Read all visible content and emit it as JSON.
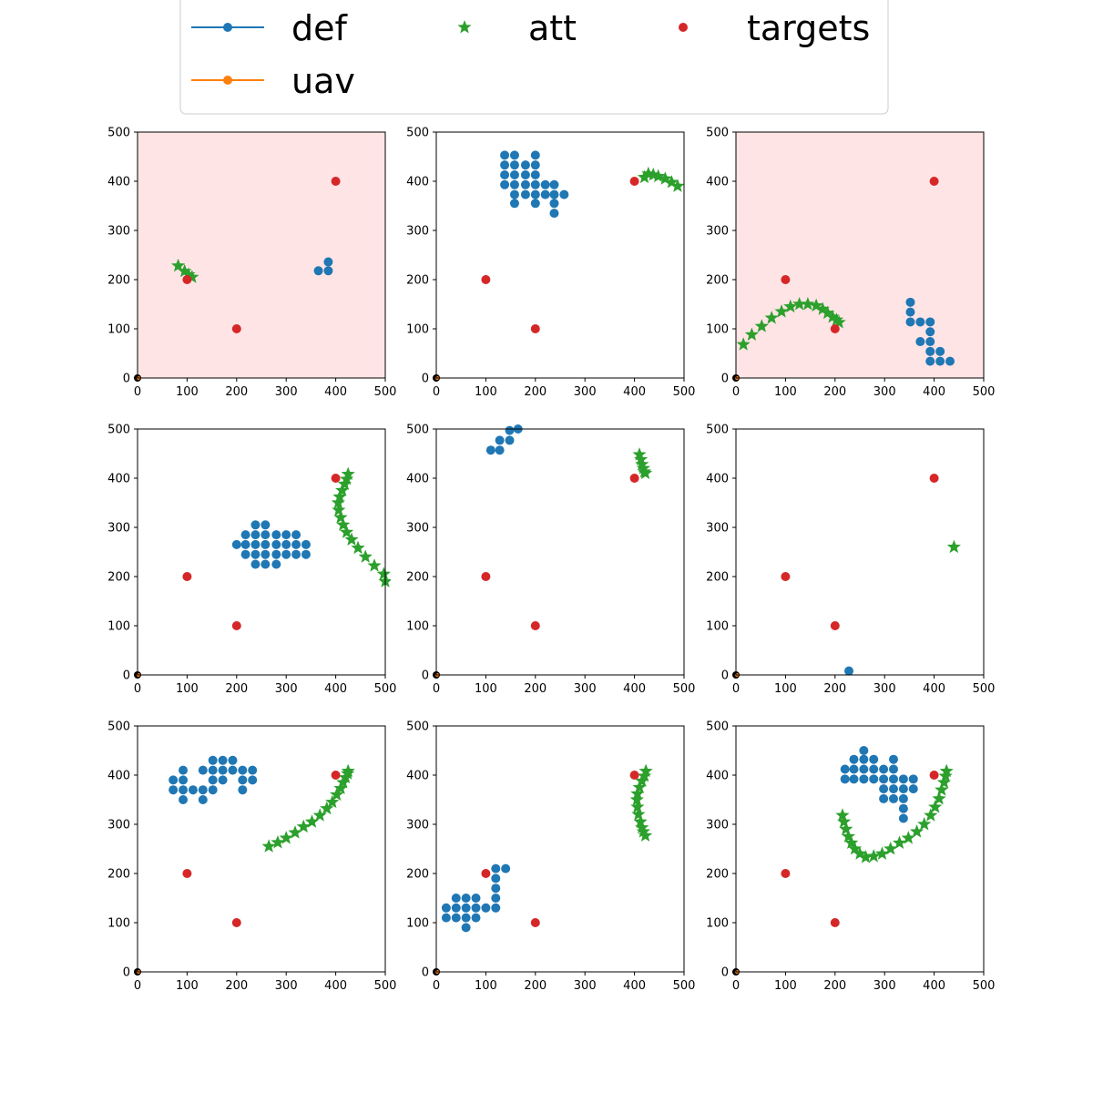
{
  "colors": {
    "def": "#1f77b4",
    "uav": "#ff7f0e",
    "att": "#2ca02c",
    "targets": "#d62728",
    "origin": "#000000",
    "highlight_bg": "#ffe4e6"
  },
  "legend": {
    "placement": "top-center",
    "entries": [
      {
        "key": "def",
        "label": "def",
        "marker": "line-dot"
      },
      {
        "key": "att",
        "label": "att",
        "marker": "star"
      },
      {
        "key": "targets",
        "label": "targets",
        "marker": "dot"
      },
      {
        "key": "uav",
        "label": "uav",
        "marker": "line-dot"
      }
    ]
  },
  "chart_data": [
    {
      "type": "scatter",
      "highlighted": true,
      "xlim": [
        0,
        500
      ],
      "ylim": [
        0,
        500
      ],
      "xticks": [
        "0",
        "100",
        "200",
        "300",
        "400",
        "500"
      ],
      "yticks": [
        "0",
        "100",
        "200",
        "300",
        "400",
        "500"
      ],
      "targets": [
        [
          100,
          200
        ],
        [
          200,
          100
        ],
        [
          400,
          400
        ]
      ],
      "def": [
        [
          365,
          218
        ],
        [
          385,
          218
        ],
        [
          385,
          236
        ]
      ],
      "att": [
        [
          82,
          228
        ],
        [
          95,
          217
        ],
        [
          103,
          210
        ],
        [
          110,
          205
        ]
      ],
      "origin": [
        [
          0,
          0
        ]
      ]
    },
    {
      "type": "scatter",
      "highlighted": false,
      "xlim": [
        0,
        500
      ],
      "ylim": [
        0,
        500
      ],
      "xticks": [
        "0",
        "100",
        "200",
        "300",
        "400",
        "500"
      ],
      "yticks": [
        "0",
        "100",
        "200",
        "300",
        "400",
        "500"
      ],
      "targets": [
        [
          100,
          200
        ],
        [
          200,
          100
        ],
        [
          400,
          400
        ]
      ],
      "def": [
        [
          138,
          453
        ],
        [
          158,
          453
        ],
        [
          200,
          453
        ],
        [
          138,
          433
        ],
        [
          158,
          433
        ],
        [
          180,
          433
        ],
        [
          200,
          433
        ],
        [
          138,
          413
        ],
        [
          158,
          413
        ],
        [
          180,
          413
        ],
        [
          200,
          413
        ],
        [
          138,
          393
        ],
        [
          158,
          393
        ],
        [
          180,
          393
        ],
        [
          200,
          393
        ],
        [
          220,
          393
        ],
        [
          238,
          393
        ],
        [
          158,
          373
        ],
        [
          180,
          373
        ],
        [
          200,
          373
        ],
        [
          220,
          373
        ],
        [
          238,
          373
        ],
        [
          258,
          373
        ],
        [
          158,
          355
        ],
        [
          200,
          355
        ],
        [
          238,
          355
        ],
        [
          238,
          335
        ]
      ],
      "att": [
        [
          420,
          408
        ],
        [
          428,
          415
        ],
        [
          438,
          413
        ],
        [
          448,
          410
        ],
        [
          462,
          405
        ],
        [
          475,
          398
        ],
        [
          487,
          390
        ]
      ],
      "origin": [
        [
          0,
          0
        ]
      ]
    },
    {
      "type": "scatter",
      "highlighted": true,
      "xlim": [
        0,
        500
      ],
      "ylim": [
        0,
        500
      ],
      "xticks": [
        "0",
        "100",
        "200",
        "300",
        "400",
        "500"
      ],
      "yticks": [
        "0",
        "100",
        "200",
        "300",
        "400",
        "500"
      ],
      "targets": [
        [
          100,
          200
        ],
        [
          200,
          100
        ],
        [
          400,
          400
        ]
      ],
      "def": [
        [
          352,
          154
        ],
        [
          352,
          134
        ],
        [
          352,
          114
        ],
        [
          372,
          114
        ],
        [
          392,
          114
        ],
        [
          372,
          74
        ],
        [
          392,
          94
        ],
        [
          392,
          74
        ],
        [
          392,
          54
        ],
        [
          412,
          54
        ],
        [
          392,
          34
        ],
        [
          412,
          34
        ],
        [
          432,
          34
        ]
      ],
      "att": [
        [
          15,
          68
        ],
        [
          32,
          88
        ],
        [
          52,
          105
        ],
        [
          72,
          122
        ],
        [
          92,
          135
        ],
        [
          110,
          145
        ],
        [
          128,
          150
        ],
        [
          145,
          150
        ],
        [
          162,
          147
        ],
        [
          175,
          140
        ],
        [
          185,
          132
        ],
        [
          195,
          124
        ],
        [
          203,
          118
        ],
        [
          208,
          113
        ]
      ],
      "origin": [
        [
          0,
          0
        ]
      ]
    },
    {
      "type": "scatter",
      "highlighted": false,
      "xlim": [
        0,
        500
      ],
      "ylim": [
        0,
        500
      ],
      "xticks": [
        "0",
        "100",
        "200",
        "300",
        "400",
        "500"
      ],
      "yticks": [
        "0",
        "100",
        "200",
        "300",
        "400",
        "500"
      ],
      "targets": [
        [
          100,
          200
        ],
        [
          200,
          100
        ],
        [
          400,
          400
        ]
      ],
      "def": [
        [
          238,
          305
        ],
        [
          258,
          305
        ],
        [
          218,
          285
        ],
        [
          238,
          285
        ],
        [
          258,
          285
        ],
        [
          280,
          285
        ],
        [
          300,
          285
        ],
        [
          320,
          285
        ],
        [
          200,
          265
        ],
        [
          218,
          265
        ],
        [
          238,
          265
        ],
        [
          258,
          265
        ],
        [
          280,
          265
        ],
        [
          300,
          265
        ],
        [
          320,
          265
        ],
        [
          340,
          265
        ],
        [
          218,
          245
        ],
        [
          238,
          245
        ],
        [
          258,
          245
        ],
        [
          280,
          245
        ],
        [
          300,
          245
        ],
        [
          320,
          245
        ],
        [
          340,
          245
        ],
        [
          238,
          225
        ],
        [
          258,
          225
        ],
        [
          280,
          225
        ]
      ],
      "att": [
        [
          425,
          408
        ],
        [
          422,
          398
        ],
        [
          418,
          388
        ],
        [
          413,
          375
        ],
        [
          408,
          362
        ],
        [
          405,
          350
        ],
        [
          406,
          335
        ],
        [
          410,
          320
        ],
        [
          415,
          305
        ],
        [
          422,
          290
        ],
        [
          432,
          275
        ],
        [
          445,
          258
        ],
        [
          460,
          240
        ],
        [
          478,
          222
        ],
        [
          497,
          205
        ],
        [
          500,
          190
        ]
      ],
      "origin": [
        [
          0,
          0
        ]
      ]
    },
    {
      "type": "scatter",
      "highlighted": false,
      "xlim": [
        0,
        500
      ],
      "ylim": [
        0,
        500
      ],
      "xticks": [
        "0",
        "100",
        "200",
        "300",
        "400",
        "500"
      ],
      "yticks": [
        "0",
        "100",
        "200",
        "300",
        "400",
        "500"
      ],
      "targets": [
        [
          100,
          200
        ],
        [
          200,
          100
        ],
        [
          400,
          400
        ]
      ],
      "def": [
        [
          110,
          457
        ],
        [
          128,
          457
        ],
        [
          128,
          477
        ],
        [
          148,
          477
        ],
        [
          148,
          497
        ],
        [
          165,
          500
        ]
      ],
      "att": [
        [
          410,
          448
        ],
        [
          413,
          438
        ],
        [
          415,
          428
        ],
        [
          418,
          420
        ],
        [
          420,
          413
        ],
        [
          422,
          410
        ]
      ],
      "origin": [
        [
          0,
          0
        ]
      ]
    },
    {
      "type": "scatter",
      "highlighted": false,
      "xlim": [
        0,
        500
      ],
      "ylim": [
        0,
        500
      ],
      "xticks": [
        "0",
        "100",
        "200",
        "300",
        "400",
        "500"
      ],
      "yticks": [
        "0",
        "100",
        "200",
        "300",
        "400",
        "500"
      ],
      "targets": [
        [
          100,
          200
        ],
        [
          200,
          100
        ],
        [
          400,
          400
        ]
      ],
      "def": [
        [
          228,
          8
        ]
      ],
      "att": [
        [
          440,
          260
        ]
      ],
      "origin": [
        [
          0,
          0
        ]
      ]
    },
    {
      "type": "scatter",
      "highlighted": false,
      "xlim": [
        0,
        500
      ],
      "ylim": [
        0,
        500
      ],
      "xticks": [
        "0",
        "100",
        "200",
        "300",
        "400",
        "500"
      ],
      "yticks": [
        "0",
        "100",
        "200",
        "300",
        "400",
        "500"
      ],
      "targets": [
        [
          100,
          200
        ],
        [
          200,
          100
        ],
        [
          400,
          400
        ]
      ],
      "def": [
        [
          152,
          430
        ],
        [
          172,
          430
        ],
        [
          192,
          430
        ],
        [
          92,
          410
        ],
        [
          132,
          410
        ],
        [
          152,
          410
        ],
        [
          172,
          410
        ],
        [
          192,
          410
        ],
        [
          212,
          410
        ],
        [
          232,
          410
        ],
        [
          72,
          390
        ],
        [
          92,
          390
        ],
        [
          152,
          390
        ],
        [
          172,
          390
        ],
        [
          212,
          390
        ],
        [
          232,
          390
        ],
        [
          72,
          370
        ],
        [
          92,
          370
        ],
        [
          112,
          370
        ],
        [
          132,
          370
        ],
        [
          152,
          370
        ],
        [
          212,
          370
        ],
        [
          92,
          350
        ],
        [
          132,
          350
        ]
      ],
      "att": [
        [
          265,
          255
        ],
        [
          283,
          263
        ],
        [
          300,
          272
        ],
        [
          318,
          283
        ],
        [
          335,
          295
        ],
        [
          352,
          305
        ],
        [
          368,
          318
        ],
        [
          382,
          332
        ],
        [
          393,
          345
        ],
        [
          402,
          360
        ],
        [
          410,
          373
        ],
        [
          415,
          385
        ],
        [
          420,
          395
        ],
        [
          424,
          403
        ],
        [
          425,
          408
        ]
      ],
      "origin": [
        [
          0,
          0
        ]
      ]
    },
    {
      "type": "scatter",
      "highlighted": false,
      "xlim": [
        0,
        500
      ],
      "ylim": [
        0,
        500
      ],
      "xticks": [
        "0",
        "100",
        "200",
        "300",
        "400",
        "500"
      ],
      "yticks": [
        "0",
        "100",
        "200",
        "300",
        "400",
        "500"
      ],
      "targets": [
        [
          100,
          200
        ],
        [
          200,
          100
        ],
        [
          400,
          400
        ]
      ],
      "def": [
        [
          120,
          210
        ],
        [
          140,
          210
        ],
        [
          120,
          190
        ],
        [
          120,
          170
        ],
        [
          120,
          150
        ],
        [
          40,
          150
        ],
        [
          60,
          150
        ],
        [
          80,
          150
        ],
        [
          20,
          130
        ],
        [
          40,
          130
        ],
        [
          60,
          130
        ],
        [
          80,
          130
        ],
        [
          100,
          130
        ],
        [
          120,
          130
        ],
        [
          20,
          110
        ],
        [
          40,
          110
        ],
        [
          60,
          110
        ],
        [
          80,
          110
        ],
        [
          60,
          90
        ]
      ],
      "att": [
        [
          423,
          408
        ],
        [
          420,
          398
        ],
        [
          415,
          388
        ],
        [
          410,
          375
        ],
        [
          406,
          362
        ],
        [
          405,
          350
        ],
        [
          406,
          335
        ],
        [
          408,
          320
        ],
        [
          412,
          305
        ],
        [
          415,
          293
        ],
        [
          418,
          285
        ],
        [
          422,
          277
        ]
      ],
      "origin": [
        [
          0,
          0
        ]
      ]
    },
    {
      "type": "scatter",
      "highlighted": false,
      "xlim": [
        0,
        500
      ],
      "ylim": [
        0,
        500
      ],
      "xticks": [
        "0",
        "100",
        "200",
        "300",
        "400",
        "500"
      ],
      "yticks": [
        "0",
        "100",
        "200",
        "300",
        "400",
        "500"
      ],
      "targets": [
        [
          100,
          200
        ],
        [
          200,
          100
        ],
        [
          400,
          400
        ]
      ],
      "def": [
        [
          258,
          450
        ],
        [
          238,
          432
        ],
        [
          258,
          432
        ],
        [
          278,
          432
        ],
        [
          318,
          432
        ],
        [
          220,
          412
        ],
        [
          238,
          412
        ],
        [
          258,
          412
        ],
        [
          278,
          412
        ],
        [
          298,
          412
        ],
        [
          318,
          412
        ],
        [
          220,
          392
        ],
        [
          238,
          392
        ],
        [
          258,
          392
        ],
        [
          278,
          392
        ],
        [
          298,
          392
        ],
        [
          318,
          392
        ],
        [
          338,
          392
        ],
        [
          358,
          392
        ],
        [
          298,
          372
        ],
        [
          318,
          372
        ],
        [
          338,
          372
        ],
        [
          358,
          372
        ],
        [
          298,
          352
        ],
        [
          318,
          352
        ],
        [
          338,
          352
        ],
        [
          338,
          332
        ],
        [
          338,
          312
        ]
      ],
      "att": [
        [
          215,
          318
        ],
        [
          218,
          305
        ],
        [
          222,
          290
        ],
        [
          227,
          275
        ],
        [
          233,
          262
        ],
        [
          240,
          250
        ],
        [
          250,
          240
        ],
        [
          262,
          233
        ],
        [
          278,
          235
        ],
        [
          295,
          240
        ],
        [
          312,
          250
        ],
        [
          330,
          262
        ],
        [
          348,
          272
        ],
        [
          365,
          285
        ],
        [
          380,
          300
        ],
        [
          393,
          318
        ],
        [
          402,
          335
        ],
        [
          410,
          352
        ],
        [
          415,
          370
        ],
        [
          420,
          385
        ],
        [
          423,
          398
        ],
        [
          425,
          408
        ]
      ],
      "origin": [
        [
          0,
          0
        ]
      ]
    }
  ]
}
